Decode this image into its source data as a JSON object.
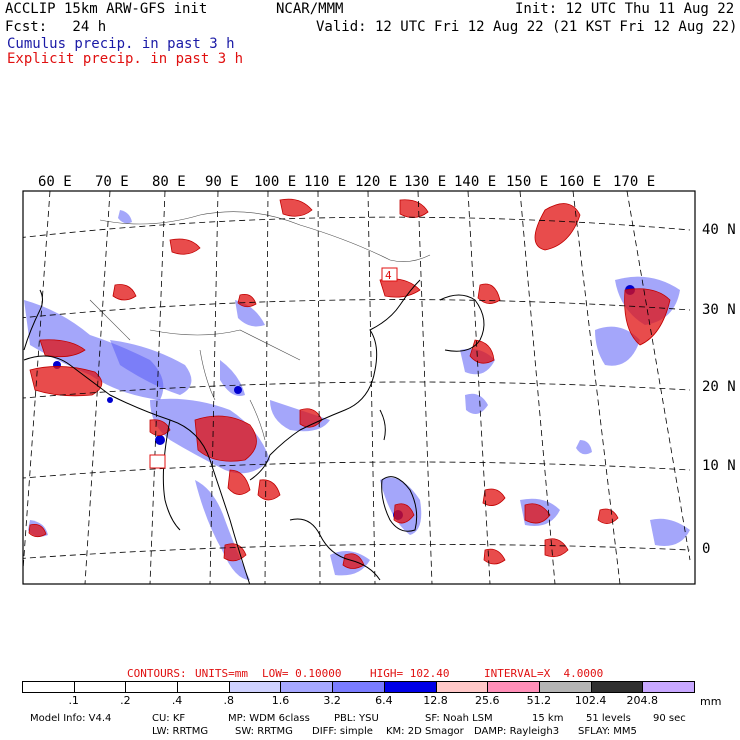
{
  "header": {
    "title": "ACCLIP 15km ARW-GFS init",
    "center": "NCAR/MMM",
    "init": "Init: 12 UTC Thu 11 Aug 22",
    "fcst": "Fcst:   24 h",
    "valid": "Valid: 12 UTC Fri 12 Aug 22 (21 KST Fri 12 Aug 22)",
    "cumulus": "Cumulus precip. in past 3 h",
    "explicit": "Explicit precip. in past 3 h"
  },
  "map": {
    "lon_labels": [
      "60 E",
      "70 E",
      "80 E",
      "90 E",
      "100 E",
      "110 E",
      "120 E",
      "130 E",
      "140 E",
      "150 E",
      "160 E",
      "170 E"
    ],
    "lat_labels": [
      "40 N",
      "30 N",
      "20 N",
      "10 N",
      "0"
    ],
    "contour_labels": [
      "4",
      "4"
    ],
    "colors": {
      "cumulus": "#3c3cf0",
      "explicit": "#e01010",
      "coast": "#000000",
      "grid": "#000000"
    }
  },
  "contours": {
    "heading": "CONTOURS:",
    "units": "UNITS=mm",
    "low": "LOW= 0.10000",
    "high": "HIGH= 102.40",
    "interval": "INTERVAL=X  4.0000"
  },
  "colorbar": {
    "unit": "mm",
    "labels": [
      ".1",
      ".2",
      ".4",
      ".8",
      "1.6",
      "3.2",
      "6.4",
      "12.8",
      "25.6",
      "51.2",
      "102.4",
      "204.8"
    ],
    "colors": [
      "#ffffff",
      "#ffffff",
      "#ffffff",
      "#ffffff",
      "#cfd2ff",
      "#a6a8ff",
      "#7a7cff",
      "#0000e6",
      "#ffc8c8",
      "#ff8fb8",
      "#b4b4b4",
      "#303030",
      "#c8a8ff"
    ]
  },
  "footer": {
    "line1": [
      "Model Info: V4.4",
      "CU: KF",
      "MP: WDM 6class",
      "PBL: YSU",
      "SF: Noah LSM",
      "15 km",
      "51 levels",
      "90 sec"
    ],
    "line2": [
      "LW: RRTMG",
      "SW: RRTMG",
      "DIFF: simple",
      "KM: 2D Smagor",
      "DAMP: Rayleigh3",
      "SFLAY: MM5"
    ]
  }
}
